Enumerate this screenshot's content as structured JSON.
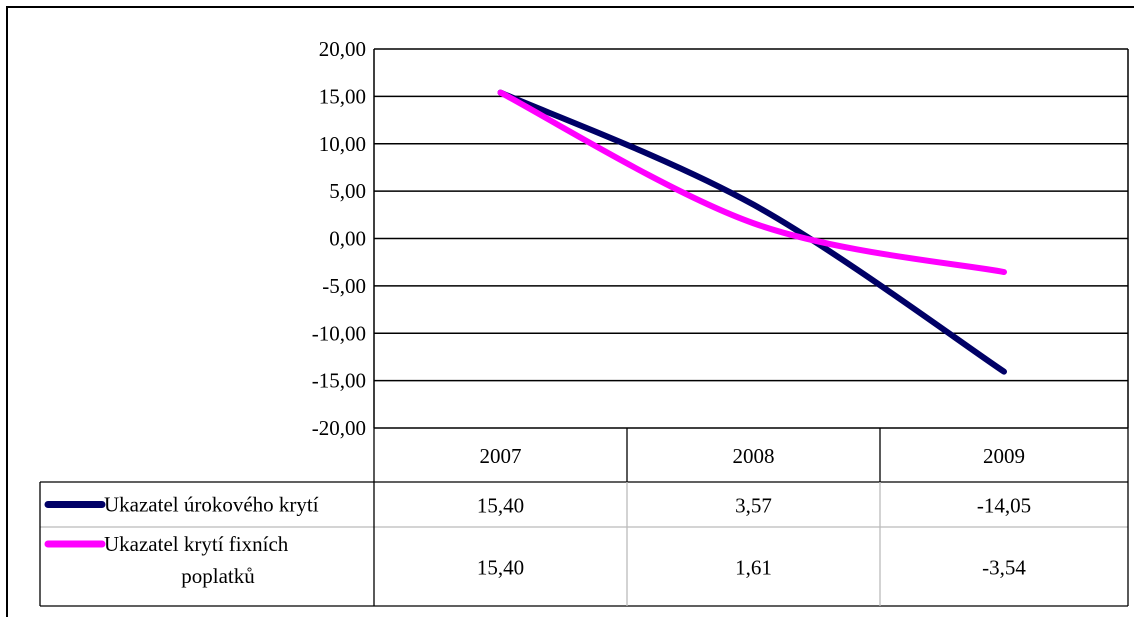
{
  "chart_data": {
    "type": "line",
    "categories": [
      "2007",
      "2008",
      "2009"
    ],
    "series": [
      {
        "name": "Ukazatel úrokového krytí",
        "values": [
          15.4,
          3.57,
          -14.05
        ],
        "color": "#000066",
        "value_labels": [
          "15,40",
          "3,57",
          "-14,05"
        ]
      },
      {
        "name": "Ukazatel krytí fixních poplatků",
        "values": [
          15.4,
          1.61,
          -3.54
        ],
        "color": "#ff00ff",
        "value_labels": [
          "15,40",
          "1,61",
          "-3,54"
        ]
      }
    ],
    "ylim": [
      -20,
      20
    ],
    "y_ticks": [
      20,
      15,
      10,
      5,
      0,
      -5,
      -10,
      -15,
      -20
    ],
    "y_tick_labels": [
      "20,00",
      "15,00",
      "10,00",
      "5,00",
      "0,00",
      "-5,00",
      "-10,00",
      "-15,00",
      "-20,00"
    ],
    "grid": true,
    "legend": "data-table",
    "smooth": true
  }
}
